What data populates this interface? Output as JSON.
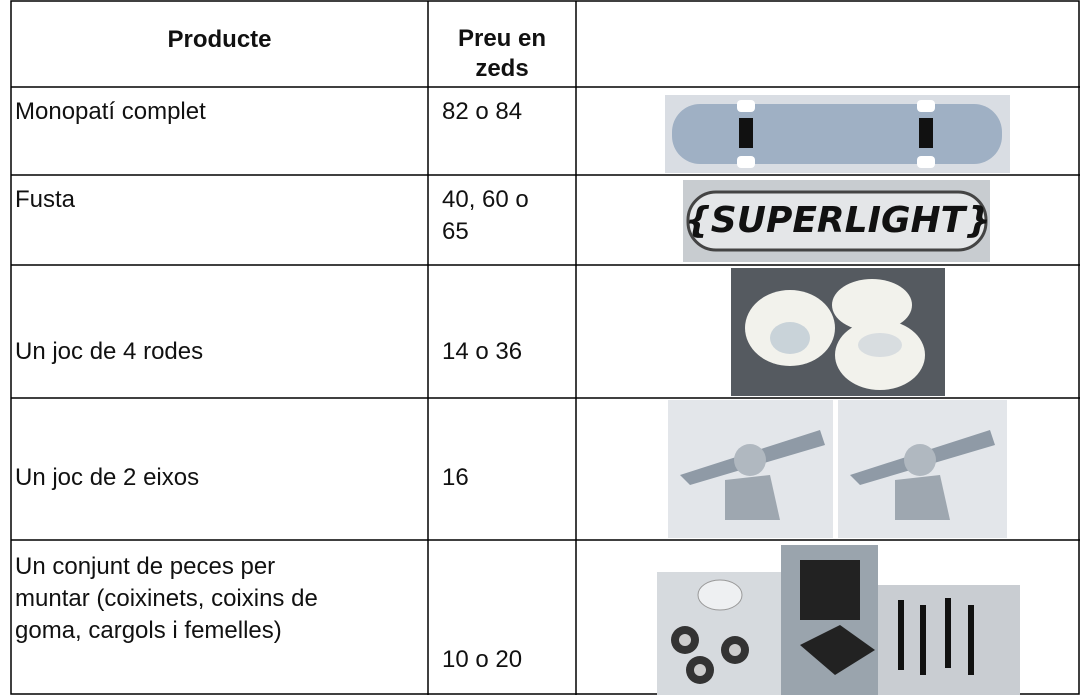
{
  "table": {
    "header": [
      "Producte",
      "Preu en zeds"
    ],
    "rows": [
      [
        "Monopatí complet",
        "82 o 84"
      ],
      [
        "Fusta",
        "40, 60 o 65"
      ],
      [
        "Un joc de 4 rodes",
        "14 o 36"
      ],
      [
        "Un joc de 2 eixos",
        "16"
      ],
      [
        "Un conjunt de peces per muntar (coixinets, coixins de goma, cargols i femelles)",
        "10 o 20"
      ]
    ]
  }
}
